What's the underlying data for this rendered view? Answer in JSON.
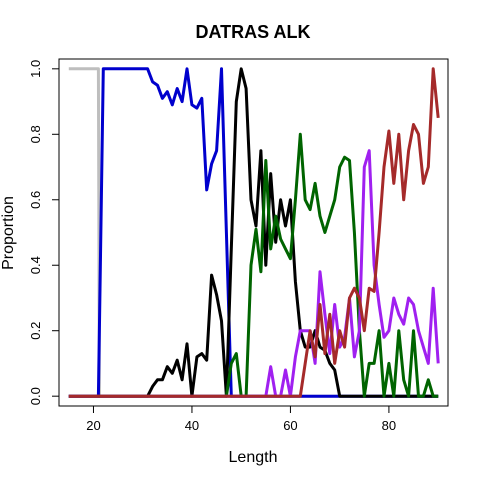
{
  "chart_data": {
    "type": "line",
    "title": "DATRAS ALK",
    "xlabel": "Length",
    "ylabel": "Proportion",
    "xlim": [
      13,
      92
    ],
    "ylim": [
      -0.03,
      1.03
    ],
    "x_ticks": [
      20,
      40,
      60,
      80
    ],
    "y_ticks": [
      0.0,
      0.2,
      0.4,
      0.6,
      0.8,
      1.0
    ],
    "x_tick_labels": [
      "20",
      "40",
      "60",
      "80"
    ],
    "y_tick_labels": [
      "0.0",
      "0.2",
      "0.4",
      "0.6",
      "0.8",
      "1.0"
    ],
    "grid": false,
    "legend": "none",
    "series": [
      {
        "color": "#bebebe",
        "x": [
          15,
          21,
          21.2,
          22,
          90
        ],
        "y": [
          1,
          1,
          0,
          0,
          0
        ]
      },
      {
        "color": "#0000cd",
        "x": [
          15,
          21,
          22,
          31,
          32,
          33,
          34,
          35,
          36,
          37,
          38,
          39,
          40,
          41,
          42,
          43,
          44,
          45,
          46,
          47,
          48,
          49,
          90
        ],
        "y": [
          0,
          0,
          1,
          1,
          0.96,
          0.95,
          0.91,
          0.93,
          0.89,
          0.94,
          0.9,
          1,
          0.89,
          0.88,
          0.91,
          0.63,
          0.71,
          0.75,
          1,
          0.5,
          0,
          0,
          0
        ]
      },
      {
        "color": "#000000",
        "x": [
          15,
          31,
          32,
          33,
          34,
          35,
          36,
          37,
          38,
          39,
          40,
          41,
          42,
          43,
          44,
          45,
          46,
          47,
          48,
          49,
          50,
          51,
          52,
          53,
          54,
          55,
          56,
          57,
          58,
          59,
          60,
          61,
          62,
          63,
          64,
          65,
          66,
          67,
          68,
          69,
          70,
          71,
          90
        ],
        "y": [
          0,
          0,
          0.03,
          0.05,
          0.05,
          0.09,
          0.07,
          0.11,
          0.05,
          0.16,
          0,
          0.12,
          0.13,
          0.11,
          0.37,
          0.31,
          0.23,
          0,
          0.45,
          0.9,
          1,
          0.94,
          0.6,
          0.52,
          0.75,
          0.4,
          0.68,
          0.47,
          0.6,
          0.52,
          0.6,
          0.35,
          0.2,
          0.15,
          0.15,
          0.2,
          0.15,
          0.14,
          0.1,
          0.08,
          0,
          0,
          0
        ]
      },
      {
        "color": "#006400",
        "x": [
          15,
          47,
          48,
          49,
          50,
          51,
          52,
          53,
          54,
          55,
          56,
          57,
          58,
          59,
          60,
          61,
          62,
          63,
          64,
          65,
          66,
          67,
          68,
          69,
          70,
          71,
          72,
          73,
          74,
          75,
          76,
          77,
          78,
          79,
          80,
          81,
          82,
          83,
          84,
          85,
          86,
          87,
          88,
          89,
          90
        ],
        "y": [
          0,
          0,
          0.1,
          0.13,
          0,
          0,
          0.4,
          0.51,
          0.38,
          0.72,
          0.45,
          0.55,
          0.48,
          0.45,
          0.42,
          0.6,
          0.8,
          0.6,
          0.57,
          0.65,
          0.55,
          0.5,
          0.55,
          0.6,
          0.7,
          0.73,
          0.72,
          0.5,
          0.2,
          0,
          0.1,
          0.1,
          0.2,
          0,
          0.1,
          0,
          0.2,
          0.05,
          0,
          0.2,
          0,
          0,
          0.05,
          0,
          0
        ]
      },
      {
        "color": "#a020f0",
        "x": [
          15,
          55,
          56,
          57,
          58,
          59,
          60,
          61,
          62,
          63,
          64,
          65,
          66,
          67,
          68,
          69,
          70,
          71,
          72,
          73,
          74,
          75,
          76,
          77,
          78,
          79,
          80,
          81,
          82,
          83,
          84,
          85,
          86,
          87,
          88,
          89,
          90
        ],
        "y": [
          0,
          0,
          0.09,
          0,
          0,
          0.08,
          0,
          0.12,
          0.2,
          0.2,
          0.2,
          0.1,
          0.38,
          0.25,
          0.13,
          0.28,
          0.15,
          0.18,
          0.3,
          0.12,
          0.2,
          0.7,
          0.75,
          0.4,
          0.28,
          0.18,
          0.2,
          0.3,
          0.25,
          0.22,
          0.3,
          0.28,
          0.2,
          0.15,
          0.1,
          0.33,
          0.1
        ]
      },
      {
        "color": "#a52a2a",
        "x": [
          15,
          62,
          63,
          64,
          65,
          66,
          67,
          68,
          69,
          70,
          71,
          72,
          73,
          74,
          75,
          76,
          77,
          78,
          79,
          80,
          81,
          82,
          83,
          84,
          85,
          86,
          87,
          88,
          89,
          90
        ],
        "y": [
          0,
          0,
          0.1,
          0.2,
          0.12,
          0.28,
          0.13,
          0.25,
          0.1,
          0.2,
          0.15,
          0.3,
          0.33,
          0.3,
          0.2,
          0.33,
          0.32,
          0.5,
          0.7,
          0.81,
          0.65,
          0.8,
          0.6,
          0.75,
          0.83,
          0.8,
          0.65,
          0.7,
          1,
          0.85
        ]
      }
    ]
  }
}
